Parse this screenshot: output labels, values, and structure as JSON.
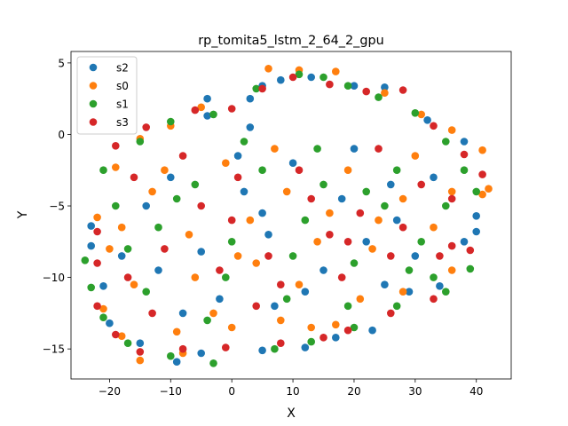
{
  "chart_data": {
    "type": "scatter",
    "title": "rp_tomita5_lstm_2_64_2_gpu",
    "xlabel": "X",
    "ylabel": "Y",
    "xlim": [
      -26.3,
      45.7
    ],
    "ylim": [
      -17.1,
      5.8
    ],
    "xticks": [
      -20,
      -10,
      0,
      10,
      20,
      30,
      40
    ],
    "yticks": [
      5,
      0,
      -5,
      -10,
      -15
    ],
    "grid": false,
    "legend_position": "top-left",
    "series": [
      {
        "name": "s2",
        "color": "#1f77b4",
        "points": [
          [
            -23,
            -7.8
          ],
          [
            -4,
            2.5
          ],
          [
            -4,
            1.3
          ],
          [
            3,
            2.5
          ],
          [
            3,
            0.5
          ],
          [
            5,
            3.4
          ],
          [
            8,
            3.8
          ],
          [
            13,
            4.0
          ],
          [
            20,
            3.4
          ],
          [
            25,
            3.3
          ],
          [
            32,
            1.0
          ],
          [
            38,
            -0.5
          ],
          [
            40,
            -5.7
          ],
          [
            40,
            -6.8
          ],
          [
            38,
            -7.5
          ],
          [
            34,
            -10.6
          ],
          [
            29,
            -11.0
          ],
          [
            23,
            -13.7
          ],
          [
            17,
            -14.2
          ],
          [
            12,
            -14.9
          ],
          [
            5,
            -15.1
          ],
          [
            -5,
            -15.3
          ],
          [
            -9,
            -15.9
          ],
          [
            -15,
            -14.6
          ],
          [
            -20,
            -13.2
          ],
          [
            -21,
            -10.6
          ],
          [
            -23,
            -6.4
          ],
          [
            -18,
            -8.5
          ],
          [
            -10,
            -3.0
          ],
          [
            -5,
            -8.2
          ],
          [
            2,
            -4.0
          ],
          [
            6,
            -7.0
          ],
          [
            10,
            -2.0
          ],
          [
            15,
            -9.5
          ],
          [
            18,
            -4.5
          ],
          [
            22,
            -7.5
          ],
          [
            26,
            -3.5
          ],
          [
            30,
            -8.5
          ],
          [
            33,
            -3.0
          ],
          [
            -2,
            -11.5
          ],
          [
            -8,
            -12.5
          ],
          [
            12,
            -11.0
          ],
          [
            7,
            -12.0
          ],
          [
            25,
            -10.5
          ],
          [
            -14,
            -5.0
          ],
          [
            1,
            -1.5
          ],
          [
            20,
            -1.0
          ],
          [
            -12,
            -9.5
          ],
          [
            5,
            -5.5
          ],
          [
            27,
            -6.0
          ]
        ]
      },
      {
        "name": "s0",
        "color": "#ff7f0e",
        "points": [
          [
            -22,
            -5.8
          ],
          [
            -21,
            -12.2
          ],
          [
            -18,
            -14.1
          ],
          [
            -15,
            -15.8
          ],
          [
            -8,
            -15.3
          ],
          [
            0,
            -13.5
          ],
          [
            8,
            -13.0
          ],
          [
            17,
            -13.3
          ],
          [
            28,
            -11.0
          ],
          [
            36,
            -9.5
          ],
          [
            41,
            -4.2
          ],
          [
            42,
            -3.8
          ],
          [
            41,
            -1.1
          ],
          [
            36,
            0.3
          ],
          [
            31,
            1.4
          ],
          [
            25,
            2.9
          ],
          [
            17,
            4.4
          ],
          [
            11,
            4.5
          ],
          [
            6,
            4.6
          ],
          [
            -5,
            1.9
          ],
          [
            -10,
            0.6
          ],
          [
            -15,
            -0.3
          ],
          [
            -19,
            -2.3
          ],
          [
            -20,
            -8.0
          ],
          [
            -13,
            -4.0
          ],
          [
            -7,
            -7.0
          ],
          [
            -1,
            -2.0
          ],
          [
            4,
            -9.0
          ],
          [
            9,
            -4.0
          ],
          [
            14,
            -7.5
          ],
          [
            19,
            -2.5
          ],
          [
            23,
            -8.0
          ],
          [
            28,
            -4.5
          ],
          [
            33,
            -6.5
          ],
          [
            -16,
            -10.5
          ],
          [
            -3,
            -12.5
          ],
          [
            11,
            -10.5
          ],
          [
            21,
            -11.5
          ],
          [
            -11,
            -2.5
          ],
          [
            3,
            -6.0
          ],
          [
            16,
            -5.5
          ],
          [
            30,
            -1.5
          ],
          [
            -6,
            -10.0
          ],
          [
            7,
            -1.0
          ],
          [
            24,
            -6.0
          ],
          [
            -18,
            -6.5
          ],
          [
            13,
            -13.5
          ],
          [
            36,
            -4.0
          ],
          [
            -9,
            -13.8
          ],
          [
            1,
            -8.5
          ]
        ]
      },
      {
        "name": "s1",
        "color": "#2ca02c",
        "points": [
          [
            -23,
            -10.7
          ],
          [
            -24,
            -8.8
          ],
          [
            -21,
            -2.5
          ],
          [
            -15,
            -0.5
          ],
          [
            -10,
            0.9
          ],
          [
            -3,
            1.4
          ],
          [
            4,
            3.2
          ],
          [
            11,
            4.2
          ],
          [
            15,
            4.0
          ],
          [
            19,
            3.4
          ],
          [
            24,
            2.6
          ],
          [
            30,
            1.5
          ],
          [
            35,
            -0.5
          ],
          [
            38,
            -2.5
          ],
          [
            40,
            -4.0
          ],
          [
            39,
            -9.4
          ],
          [
            35,
            -11.0
          ],
          [
            27,
            -12.0
          ],
          [
            20,
            -13.5
          ],
          [
            13,
            -14.5
          ],
          [
            7,
            -15.0
          ],
          [
            -3,
            -16.0
          ],
          [
            -10,
            -15.5
          ],
          [
            -17,
            -14.6
          ],
          [
            -21,
            -12.8
          ],
          [
            -19,
            -5.0
          ],
          [
            -12,
            -6.5
          ],
          [
            -6,
            -3.5
          ],
          [
            0,
            -7.5
          ],
          [
            5,
            -2.5
          ],
          [
            10,
            -8.5
          ],
          [
            15,
            -3.5
          ],
          [
            20,
            -9.0
          ],
          [
            25,
            -5.0
          ],
          [
            31,
            -7.5
          ],
          [
            35,
            -5.0
          ],
          [
            -14,
            -11.0
          ],
          [
            -4,
            -13.0
          ],
          [
            9,
            -11.5
          ],
          [
            19,
            -12.0
          ],
          [
            29,
            -9.5
          ],
          [
            -9,
            -4.5
          ],
          [
            2,
            -0.5
          ],
          [
            14,
            -1.0
          ],
          [
            27,
            -2.5
          ],
          [
            -17,
            -8.0
          ],
          [
            -1,
            -10.0
          ],
          [
            12,
            -6.0
          ],
          [
            22,
            -4.0
          ],
          [
            33,
            -10.0
          ]
        ]
      },
      {
        "name": "s3",
        "color": "#d62728",
        "points": [
          [
            -22,
            -6.8
          ],
          [
            -19,
            -0.8
          ],
          [
            -14,
            0.5
          ],
          [
            -6,
            1.7
          ],
          [
            0,
            1.8
          ],
          [
            5,
            3.2
          ],
          [
            10,
            4.0
          ],
          [
            16,
            3.5
          ],
          [
            22,
            3.0
          ],
          [
            28,
            3.1
          ],
          [
            33,
            0.6
          ],
          [
            38,
            -1.4
          ],
          [
            41,
            -2.8
          ],
          [
            39,
            -8.1
          ],
          [
            36,
            -7.8
          ],
          [
            33,
            -11.5
          ],
          [
            26,
            -12.5
          ],
          [
            19,
            -13.7
          ],
          [
            15,
            -14.2
          ],
          [
            8,
            -14.6
          ],
          [
            -1,
            -14.9
          ],
          [
            -8,
            -15.0
          ],
          [
            -15,
            -15.2
          ],
          [
            -19,
            -14.0
          ],
          [
            -22,
            -12.0
          ],
          [
            -22,
            -9.0
          ],
          [
            -16,
            -3.0
          ],
          [
            -11,
            -8.0
          ],
          [
            -5,
            -5.0
          ],
          [
            1,
            -3.0
          ],
          [
            6,
            -8.5
          ],
          [
            11,
            -2.5
          ],
          [
            16,
            -7.0
          ],
          [
            21,
            -5.5
          ],
          [
            26,
            -8.5
          ],
          [
            31,
            -3.5
          ],
          [
            36,
            -4.5
          ],
          [
            -13,
            -12.5
          ],
          [
            -2,
            -9.5
          ],
          [
            8,
            -10.5
          ],
          [
            18,
            -10.0
          ],
          [
            28,
            -6.5
          ],
          [
            -8,
            -1.5
          ],
          [
            4,
            -12.0
          ],
          [
            13,
            -4.5
          ],
          [
            24,
            -1.0
          ],
          [
            -17,
            -10.0
          ],
          [
            0,
            -6.0
          ],
          [
            19,
            -7.5
          ],
          [
            34,
            -8.5
          ]
        ]
      }
    ]
  }
}
